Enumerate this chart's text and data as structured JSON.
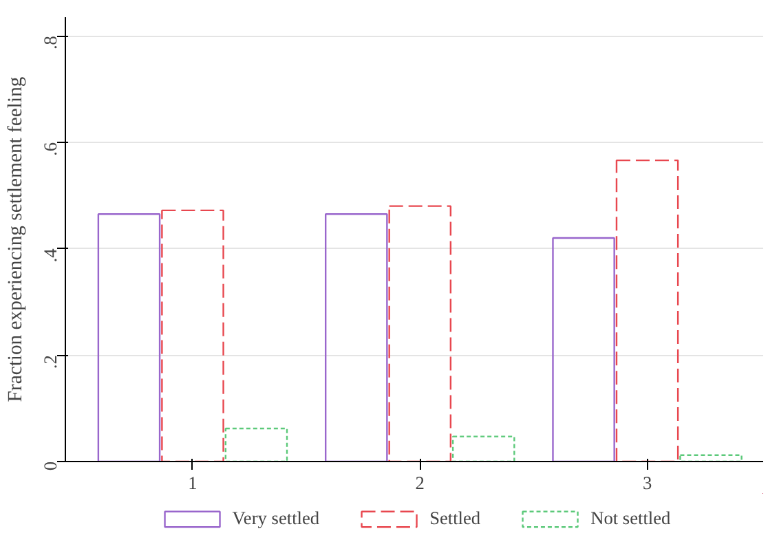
{
  "chart_data": {
    "type": "bar",
    "ylabel": "Fraction experiencing settlement feeling",
    "categories": [
      "1",
      "2",
      "3"
    ],
    "series": [
      {
        "name": "Very settled",
        "color": "#9966cc",
        "line_style": "solid",
        "values": [
          0.465,
          0.465,
          0.42
        ]
      },
      {
        "name": "Settled",
        "color": "#e8474f",
        "line_style": "dashed",
        "values": [
          0.472,
          0.48,
          0.566
        ]
      },
      {
        "name": "Not settled",
        "color": "#5cc97a",
        "line_style": "dotted",
        "values": [
          0.062,
          0.047,
          0.012
        ]
      }
    ],
    "ylim": [
      0,
      0.835
    ],
    "yticks": [
      {
        "value": 0,
        "label": "0"
      },
      {
        "value": 0.2,
        "label": ".2"
      },
      {
        "value": 0.4,
        "label": ".4"
      },
      {
        "value": 0.6,
        "label": ".6"
      },
      {
        "value": 0.8,
        "label": ".8"
      }
    ],
    "grid": "y",
    "legend": "bottom"
  }
}
